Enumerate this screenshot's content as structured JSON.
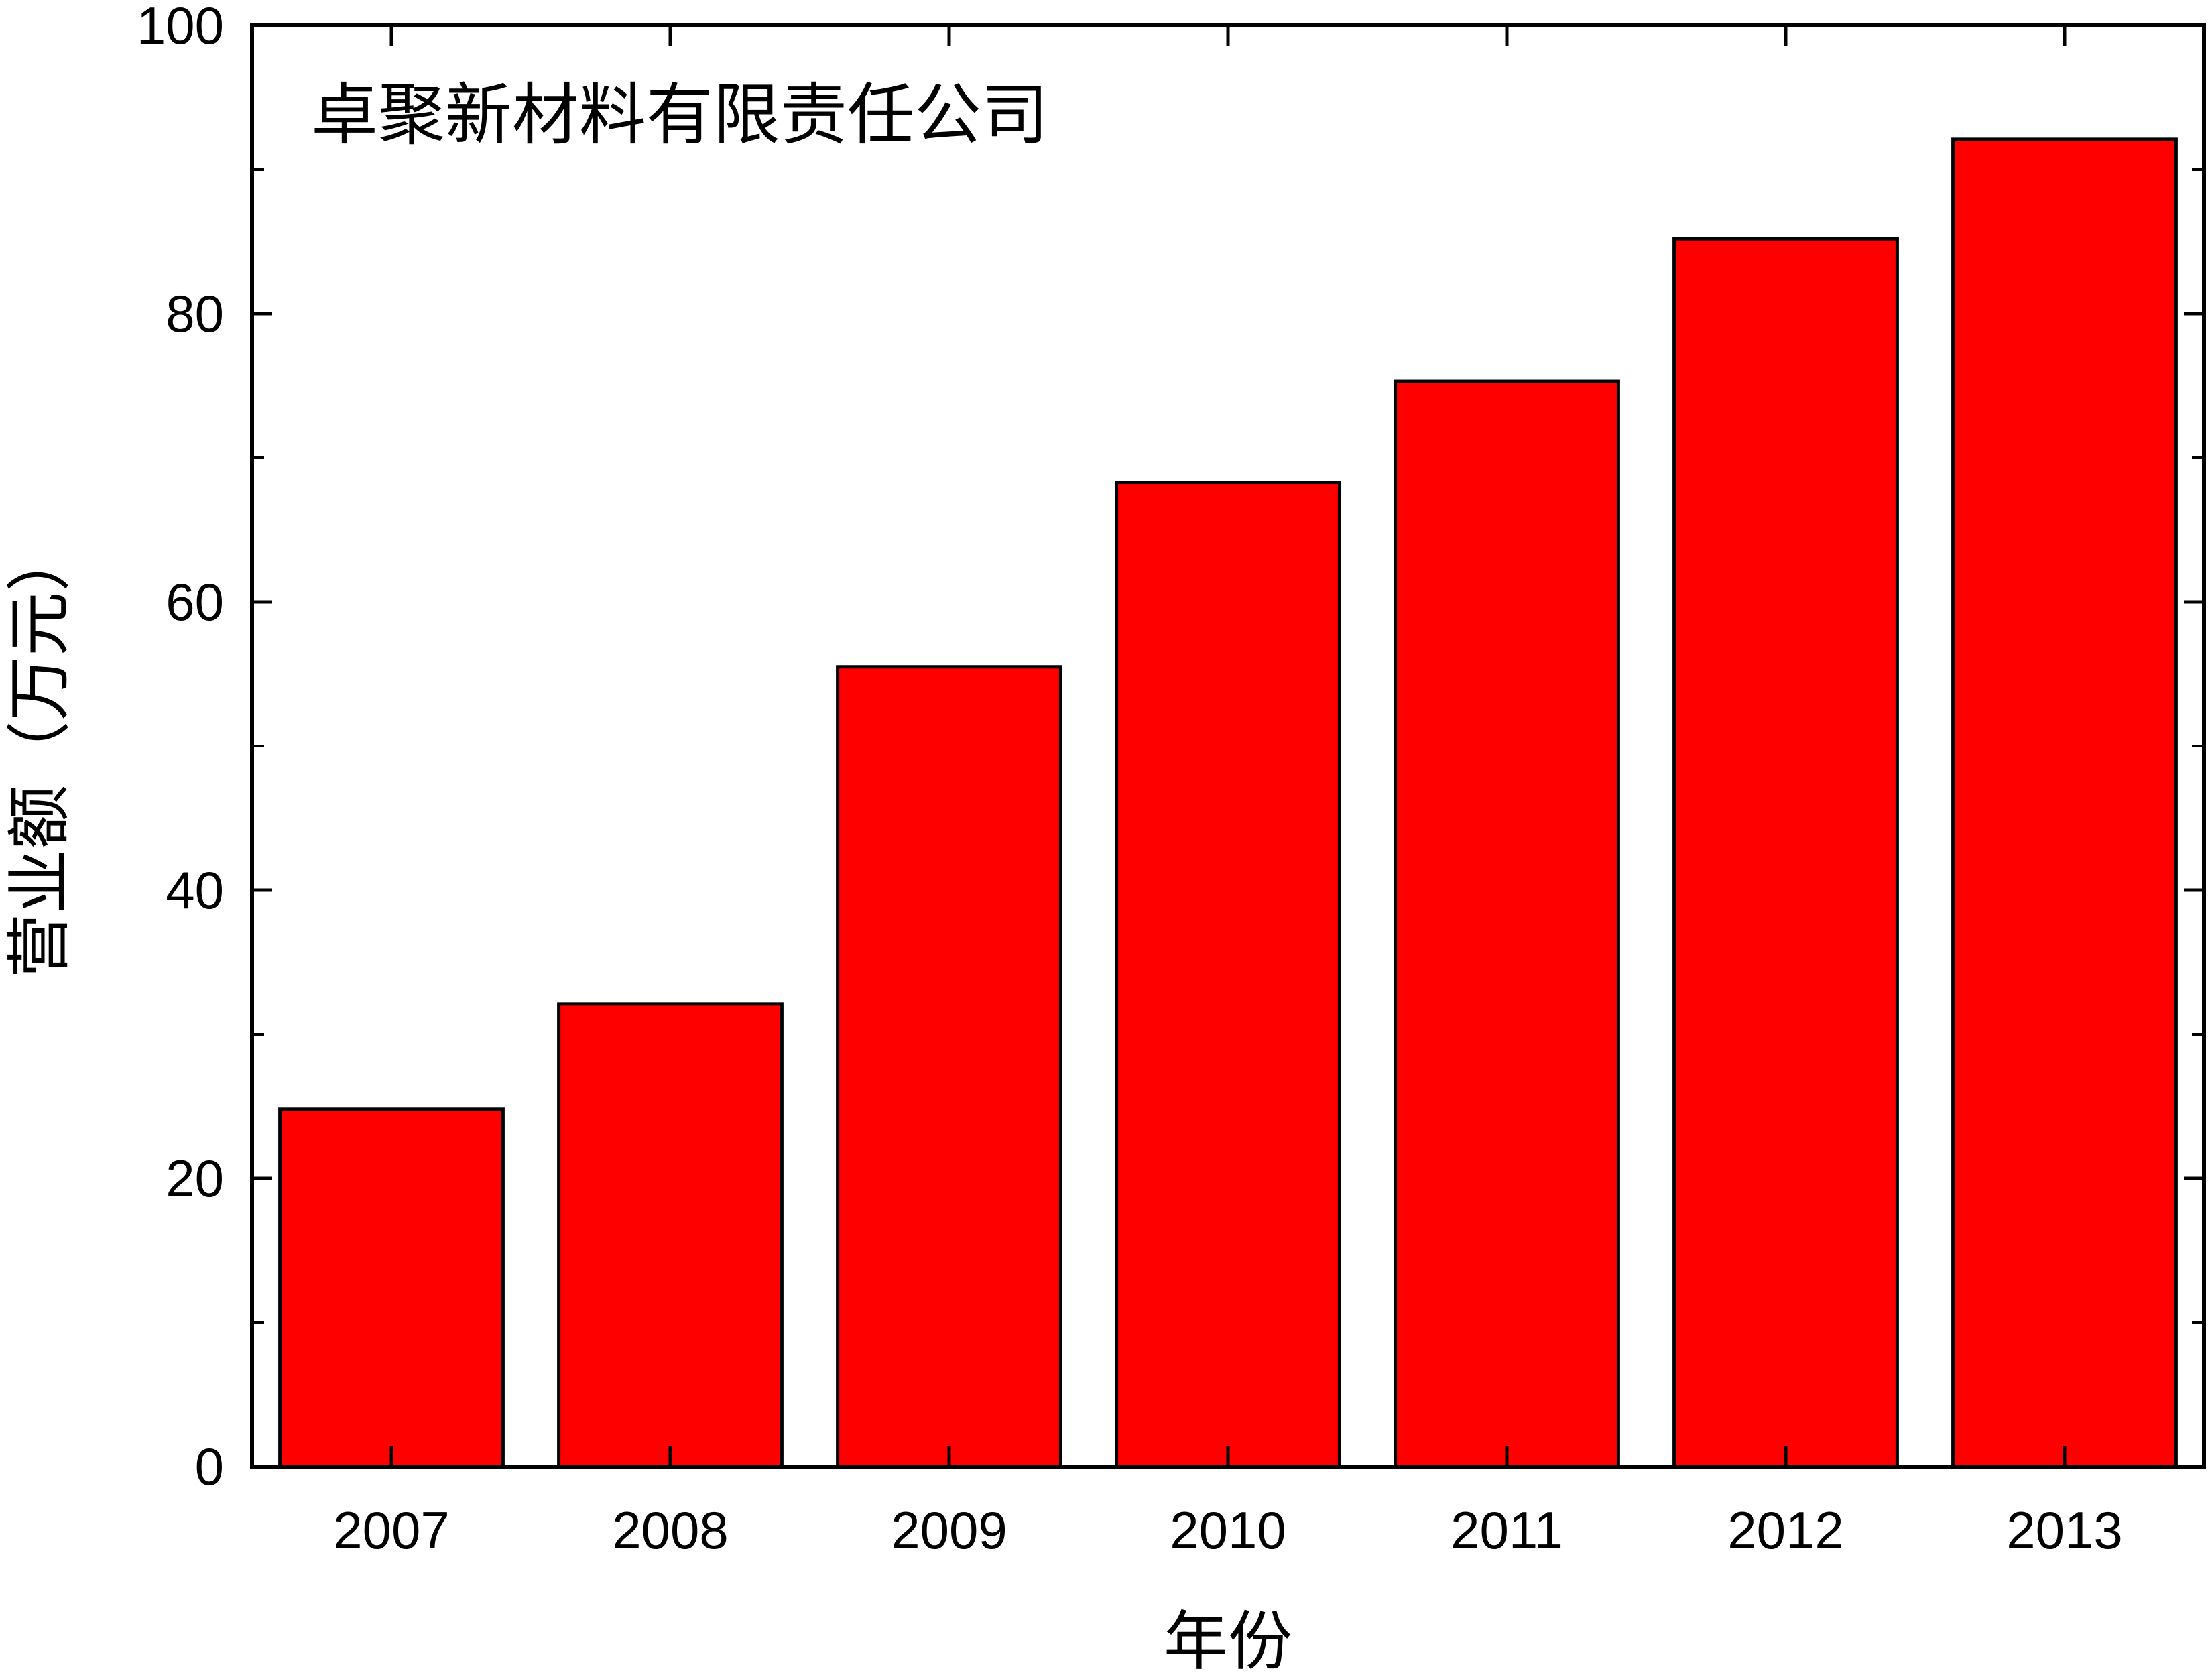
{
  "chart_data": {
    "type": "bar",
    "title": "卓聚新材料有限责任公司",
    "xlabel": "年份",
    "ylabel": "营业额（万元）",
    "categories": [
      "2007",
      "2008",
      "2009",
      "2010",
      "2011",
      "2012",
      "2013"
    ],
    "values": [
      24.8,
      32.1,
      55.5,
      68.3,
      75.3,
      85.2,
      92.1
    ],
    "ylim": [
      0,
      100
    ],
    "yticks": [
      0,
      20,
      40,
      60,
      80,
      100
    ],
    "yminor": [
      10,
      30,
      50,
      70,
      90
    ],
    "grid": false,
    "legend": "none",
    "bar_color": "#ff0000",
    "bar_edge_color": "#000000"
  }
}
